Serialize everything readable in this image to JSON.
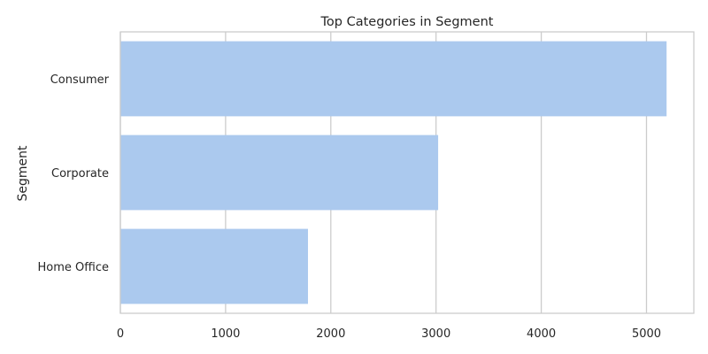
{
  "chart_data": {
    "type": "bar",
    "orientation": "horizontal",
    "title": "Top Categories in Segment",
    "xlabel": "",
    "ylabel": "Segment",
    "categories": [
      "Consumer",
      "Corporate",
      "Home Office"
    ],
    "values": [
      5191,
      3020,
      1783
    ],
    "xlim": [
      0,
      5450
    ],
    "xticks": [
      0,
      1000,
      2000,
      3000,
      4000,
      5000
    ],
    "grid": true,
    "bar_color": "#abc9ee"
  }
}
